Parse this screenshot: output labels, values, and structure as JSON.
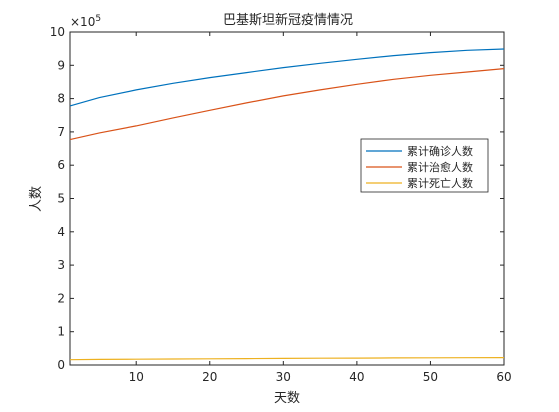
{
  "chart_data": {
    "type": "line",
    "title": "巴基斯坦新冠疫情情况",
    "xlabel": "天数",
    "ylabel": "人数",
    "xlim": [
      1,
      60
    ],
    "ylim": [
      0,
      1000000
    ],
    "x_ticks": [
      10,
      20,
      30,
      40,
      50,
      60
    ],
    "y_ticks": [
      0,
      1,
      2,
      3,
      4,
      5,
      6,
      7,
      8,
      9,
      10
    ],
    "y_exponent_label": "×10",
    "y_exponent_power": "5",
    "y_tick_scale": 100000,
    "grid": false,
    "legend_position": "right",
    "x": [
      1,
      5,
      10,
      15,
      20,
      25,
      30,
      35,
      40,
      45,
      50,
      55,
      60
    ],
    "series": [
      {
        "name": "累计确诊人数",
        "color": "#0072BD",
        "values": [
          778000,
          803000,
          826000,
          846000,
          863000,
          878000,
          893000,
          906000,
          918000,
          929000,
          938000,
          945000,
          949000
        ]
      },
      {
        "name": "累计治愈人数",
        "color": "#D95319",
        "values": [
          677000,
          697000,
          718000,
          742000,
          765000,
          787000,
          808000,
          826000,
          843000,
          858000,
          870000,
          880000,
          890000
        ]
      },
      {
        "name": "累计死亡人数",
        "color": "#EDB120",
        "values": [
          16000,
          16700,
          17400,
          18000,
          18600,
          19200,
          19800,
          20300,
          20800,
          21200,
          21600,
          21900,
          22200
        ]
      }
    ]
  }
}
